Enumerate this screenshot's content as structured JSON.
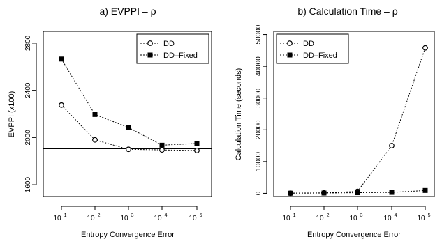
{
  "chart_data": [
    {
      "type": "line",
      "title": "a) EVPPI – ρ",
      "xlabel": "Entropy Convergence Error",
      "ylabel": "EVPPI (x100)",
      "categories": [
        "10^-1",
        "10^-2",
        "10^-3",
        "10^-4",
        "10^-5"
      ],
      "category_ticks": [
        {
          "base": "10",
          "exp": "−1"
        },
        {
          "base": "10",
          "exp": "−2"
        },
        {
          "base": "10",
          "exp": "−3"
        },
        {
          "base": "10",
          "exp": "−4"
        },
        {
          "base": "10",
          "exp": "−5"
        }
      ],
      "ylim": [
        1500,
        2900
      ],
      "yticks": [
        1600,
        2000,
        2400,
        2800
      ],
      "reference_line": 1905,
      "grid": false,
      "legend_position": "top-right",
      "series": [
        {
          "name": "DD",
          "marker": "open-circle",
          "values": [
            2275,
            1980,
            1900,
            1895,
            1890
          ]
        },
        {
          "name": "DD–Fixed",
          "marker": "filled-square",
          "values": [
            2665,
            2195,
            2085,
            1935,
            1950
          ]
        }
      ]
    },
    {
      "type": "line",
      "title": "b) Calculation Time – ρ",
      "xlabel": "Entropy Convergence Error",
      "ylabel": "Calculation Time (seconds)",
      "categories": [
        "10^-1",
        "10^-2",
        "10^-3",
        "10^-4",
        "10^-5"
      ],
      "category_ticks": [
        {
          "base": "10",
          "exp": "−1"
        },
        {
          "base": "10",
          "exp": "−2"
        },
        {
          "base": "10",
          "exp": "−3"
        },
        {
          "base": "10",
          "exp": "−4"
        },
        {
          "base": "10",
          "exp": "−5"
        }
      ],
      "ylim": [
        -1000,
        51000
      ],
      "yticks": [
        0,
        10000,
        20000,
        30000,
        40000,
        50000
      ],
      "grid": false,
      "legend_position": "top-left",
      "series": [
        {
          "name": "DD",
          "marker": "open-circle",
          "values": [
            50,
            150,
            600,
            15000,
            45800
          ]
        },
        {
          "name": "DD–Fixed",
          "marker": "filled-square",
          "values": [
            50,
            100,
            200,
            300,
            900
          ]
        }
      ]
    }
  ]
}
